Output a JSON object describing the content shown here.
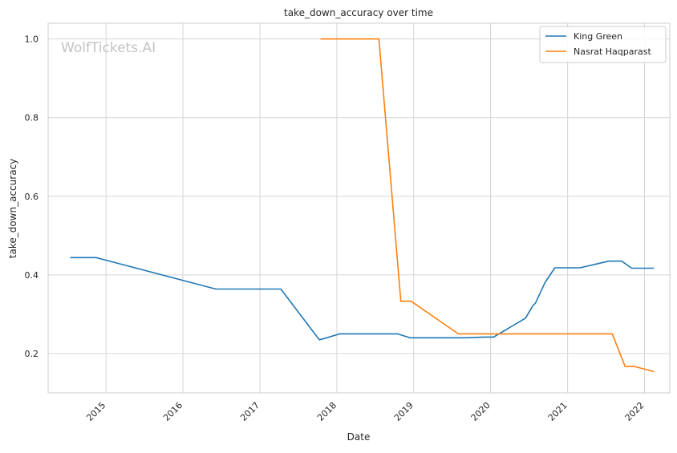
{
  "chart_data": {
    "type": "line",
    "title": "take_down_accuracy over time",
    "xlabel": "Date",
    "ylabel": "take_down_accuracy",
    "watermark": "WolfTickets.AI",
    "xlim": [
      "2014-04-01",
      "2022-05-01"
    ],
    "ylim": [
      0.1,
      1.04
    ],
    "x_ticks": [
      "2015",
      "2016",
      "2017",
      "2018",
      "2019",
      "2020",
      "2021",
      "2022"
    ],
    "y_ticks": [
      "0.2",
      "0.4",
      "0.6",
      "0.8",
      "1.0"
    ],
    "grid": true,
    "legend_position": "top-right",
    "series": [
      {
        "name": "King Green",
        "color": "#1f77b4",
        "points": [
          [
            "2014-07-15",
            0.444
          ],
          [
            "2014-11-15",
            0.444
          ],
          [
            "2016-06-05",
            0.364
          ],
          [
            "2017-03-05",
            0.364
          ],
          [
            "2017-04-10",
            0.364
          ],
          [
            "2017-10-10",
            0.235
          ],
          [
            "2017-11-01",
            0.238
          ],
          [
            "2018-01-15",
            0.25
          ],
          [
            "2018-10-15",
            0.25
          ],
          [
            "2018-12-15",
            0.24
          ],
          [
            "2019-06-15",
            0.24
          ],
          [
            "2019-09-01",
            0.24
          ],
          [
            "2019-12-01",
            0.242
          ],
          [
            "2020-01-15",
            0.242
          ],
          [
            "2020-06-15",
            0.29
          ],
          [
            "2020-07-20",
            0.322
          ],
          [
            "2020-08-01",
            0.328
          ],
          [
            "2020-09-15",
            0.38
          ],
          [
            "2020-11-01",
            0.418
          ],
          [
            "2021-03-01",
            0.418
          ],
          [
            "2021-07-15",
            0.435
          ],
          [
            "2021-09-15",
            0.435
          ],
          [
            "2021-11-01",
            0.417
          ],
          [
            "2022-02-15",
            0.417
          ]
        ]
      },
      {
        "name": "Nasrat Haqparast",
        "color": "#ff7f0e",
        "points": [
          [
            "2017-10-15",
            1.0
          ],
          [
            "2018-07-20",
            1.0
          ],
          [
            "2018-11-01",
            0.333
          ],
          [
            "2018-12-20",
            0.333
          ],
          [
            "2019-08-01",
            0.25
          ],
          [
            "2019-12-01",
            0.25
          ],
          [
            "2021-08-01",
            0.25
          ],
          [
            "2021-10-01",
            0.167
          ],
          [
            "2021-11-15",
            0.167
          ],
          [
            "2022-02-15",
            0.154
          ]
        ]
      }
    ]
  }
}
